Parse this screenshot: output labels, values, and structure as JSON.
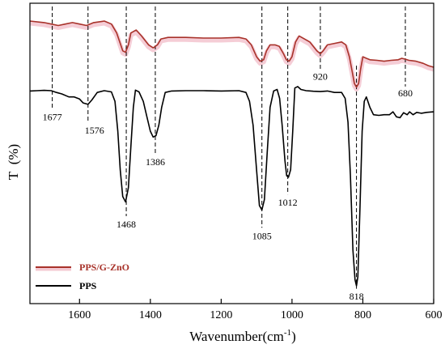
{
  "chart_data": {
    "type": "line",
    "title": "",
    "xlabel": "Wavenumber(cm",
    "xlabel_sup": "-1",
    "xlabel_close": ")",
    "ylabel": "T  (%)",
    "xlim": [
      1740,
      600
    ],
    "x_reversed": true,
    "x_ticks": [
      1600,
      1400,
      1200,
      1000,
      800,
      600
    ],
    "y_ticks_shown": false,
    "grid": false,
    "legend_position": "bottom-left",
    "peak_markers": [
      {
        "x": 1677,
        "label": "1677"
      },
      {
        "x": 1576,
        "label": "1576"
      },
      {
        "x": 1468,
        "label": "1468"
      },
      {
        "x": 1386,
        "label": "1386"
      },
      {
        "x": 1085,
        "label": "1085"
      },
      {
        "x": 1012,
        "label": "1012"
      },
      {
        "x": 920,
        "label": "920"
      },
      {
        "x": 818,
        "label": "818"
      },
      {
        "x": 680,
        "label": "680"
      }
    ],
    "series": [
      {
        "name": "PPS/G-ZnO",
        "color": "#a8322a",
        "band_color": "#f4c8d2",
        "points": [
          [
            1740,
            92
          ],
          [
            1700,
            91.5
          ],
          [
            1680,
            91
          ],
          [
            1660,
            90.5
          ],
          [
            1640,
            91
          ],
          [
            1620,
            91.5
          ],
          [
            1600,
            91
          ],
          [
            1580,
            90.5
          ],
          [
            1560,
            91.5
          ],
          [
            1530,
            92
          ],
          [
            1510,
            91
          ],
          [
            1495,
            88
          ],
          [
            1485,
            84.5
          ],
          [
            1478,
            82
          ],
          [
            1470,
            81.5
          ],
          [
            1462,
            84
          ],
          [
            1455,
            88
          ],
          [
            1440,
            89
          ],
          [
            1425,
            87
          ],
          [
            1405,
            84
          ],
          [
            1392,
            83
          ],
          [
            1380,
            84
          ],
          [
            1370,
            86
          ],
          [
            1350,
            86.5
          ],
          [
            1300,
            86.5
          ],
          [
            1250,
            86.3
          ],
          [
            1200,
            86.3
          ],
          [
            1150,
            86.5
          ],
          [
            1130,
            86
          ],
          [
            1115,
            84
          ],
          [
            1100,
            80
          ],
          [
            1090,
            78.5
          ],
          [
            1080,
            79
          ],
          [
            1072,
            82
          ],
          [
            1062,
            84
          ],
          [
            1048,
            84
          ],
          [
            1036,
            83.5
          ],
          [
            1024,
            81
          ],
          [
            1016,
            79
          ],
          [
            1008,
            78.5
          ],
          [
            1000,
            80
          ],
          [
            990,
            85
          ],
          [
            980,
            87
          ],
          [
            965,
            86
          ],
          [
            950,
            85
          ],
          [
            940,
            83.5
          ],
          [
            930,
            82
          ],
          [
            920,
            81
          ],
          [
            912,
            82
          ],
          [
            900,
            84
          ],
          [
            880,
            84.5
          ],
          [
            860,
            85
          ],
          [
            848,
            84
          ],
          [
            838,
            80
          ],
          [
            830,
            75
          ],
          [
            824,
            71
          ],
          [
            818,
            69.8
          ],
          [
            812,
            71
          ],
          [
            806,
            76
          ],
          [
            800,
            80
          ],
          [
            790,
            79.5
          ],
          [
            780,
            79
          ],
          [
            760,
            78.8
          ],
          [
            740,
            78.5
          ],
          [
            720,
            78.8
          ],
          [
            700,
            79
          ],
          [
            690,
            79.5
          ],
          [
            680,
            79.2
          ],
          [
            670,
            78.8
          ],
          [
            650,
            78.5
          ],
          [
            630,
            77.8
          ],
          [
            615,
            77
          ],
          [
            600,
            76.5
          ]
        ]
      },
      {
        "name": "PPS",
        "color": "#000000",
        "points": [
          [
            1740,
            68.5
          ],
          [
            1720,
            68.6
          ],
          [
            1700,
            68.7
          ],
          [
            1680,
            68.6
          ],
          [
            1665,
            68
          ],
          [
            1650,
            67.5
          ],
          [
            1630,
            66.5
          ],
          [
            1615,
            66.5
          ],
          [
            1600,
            65.8
          ],
          [
            1590,
            64.5
          ],
          [
            1576,
            64
          ],
          [
            1565,
            65.5
          ],
          [
            1550,
            68
          ],
          [
            1530,
            68.6
          ],
          [
            1510,
            68.2
          ],
          [
            1500,
            65
          ],
          [
            1492,
            55
          ],
          [
            1485,
            42
          ],
          [
            1478,
            33
          ],
          [
            1470,
            31.2
          ],
          [
            1462,
            36
          ],
          [
            1455,
            50
          ],
          [
            1448,
            63
          ],
          [
            1442,
            68.8
          ],
          [
            1432,
            68.2
          ],
          [
            1420,
            65
          ],
          [
            1410,
            60
          ],
          [
            1400,
            55
          ],
          [
            1392,
            53
          ],
          [
            1384,
            53.5
          ],
          [
            1376,
            57
          ],
          [
            1368,
            63
          ],
          [
            1358,
            68
          ],
          [
            1340,
            68.5
          ],
          [
            1300,
            68.6
          ],
          [
            1250,
            68.6
          ],
          [
            1200,
            68.5
          ],
          [
            1150,
            68.6
          ],
          [
            1130,
            68
          ],
          [
            1120,
            65
          ],
          [
            1110,
            57
          ],
          [
            1100,
            42
          ],
          [
            1092,
            30
          ],
          [
            1085,
            28.5
          ],
          [
            1078,
            32
          ],
          [
            1070,
            48
          ],
          [
            1062,
            63
          ],
          [
            1052,
            68.5
          ],
          [
            1042,
            69
          ],
          [
            1035,
            66
          ],
          [
            1028,
            57
          ],
          [
            1020,
            45
          ],
          [
            1015,
            40
          ],
          [
            1010,
            39.5
          ],
          [
            1004,
            42
          ],
          [
            998,
            55
          ],
          [
            992,
            69.5
          ],
          [
            984,
            70
          ],
          [
            975,
            69
          ],
          [
            960,
            68.6
          ],
          [
            940,
            68.4
          ],
          [
            920,
            68.3
          ],
          [
            900,
            68.5
          ],
          [
            880,
            68
          ],
          [
            860,
            68
          ],
          [
            850,
            66
          ],
          [
            842,
            58
          ],
          [
            835,
            40
          ],
          [
            828,
            15
          ],
          [
            822,
            5
          ],
          [
            818,
            3
          ],
          [
            814,
            6
          ],
          [
            808,
            30
          ],
          [
            802,
            55
          ],
          [
            796,
            65
          ],
          [
            790,
            66.5
          ],
          [
            780,
            63
          ],
          [
            770,
            60.5
          ],
          [
            755,
            60.3
          ],
          [
            740,
            60.5
          ],
          [
            725,
            60.5
          ],
          [
            715,
            61.5
          ],
          [
            705,
            59.8
          ],
          [
            695,
            59.5
          ],
          [
            685,
            61.2
          ],
          [
            675,
            60.5
          ],
          [
            668,
            61.5
          ],
          [
            658,
            60.5
          ],
          [
            648,
            61.3
          ],
          [
            635,
            61
          ],
          [
            620,
            61.3
          ],
          [
            600,
            61.5
          ]
        ]
      }
    ],
    "ylim": [
      -3,
      98
    ]
  }
}
